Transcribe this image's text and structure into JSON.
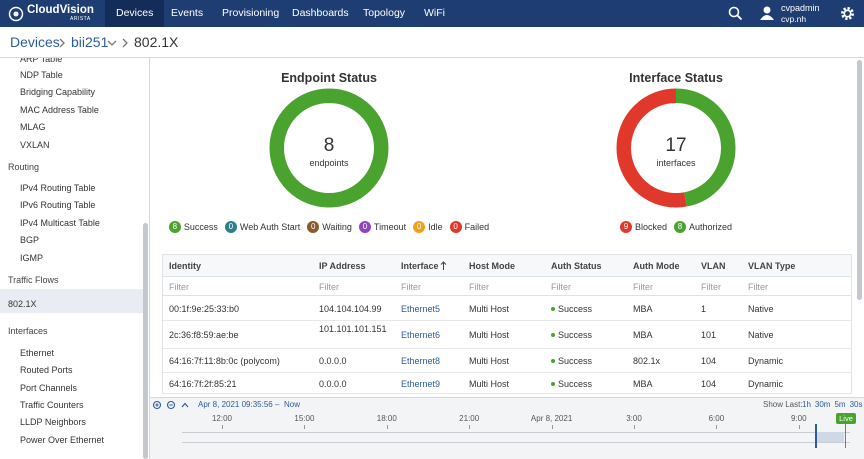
{
  "nav": {
    "brand": "CloudVision",
    "brand_sub": "ARISTA",
    "items": [
      "Devices",
      "Events",
      "Provisioning",
      "Dashboards",
      "Topology",
      "WiFi"
    ],
    "active": 0,
    "user": {
      "name": "cvpadmin",
      "host": "cvp.nh"
    }
  },
  "breadcrumb": [
    "Devices",
    "bii251",
    "802.1X"
  ],
  "sidebar": {
    "selected": 13,
    "items": [
      {
        "label": "ARP Table",
        "sub": true
      },
      {
        "label": "NDP Table",
        "sub": true
      },
      {
        "label": "Bridging Capability",
        "sub": true
      },
      {
        "label": "MAC Address Table",
        "sub": true
      },
      {
        "label": "MLAG",
        "sub": true
      },
      {
        "label": "VXLAN",
        "sub": true
      },
      {
        "label": "Routing",
        "sub": false
      },
      {
        "label": "IPv4 Routing Table",
        "sub": true
      },
      {
        "label": "IPv6 Routing Table",
        "sub": true
      },
      {
        "label": "IPv4 Multicast Table",
        "sub": true
      },
      {
        "label": "BGP",
        "sub": true
      },
      {
        "label": "IGMP",
        "sub": true
      },
      {
        "label": "Traffic Flows",
        "sub": false
      },
      {
        "label": "802.1X",
        "sub": false
      },
      {
        "label": "Interfaces",
        "sub": false
      },
      {
        "label": "Ethernet",
        "sub": true
      },
      {
        "label": "Routed Ports",
        "sub": true
      },
      {
        "label": "Port Channels",
        "sub": true
      },
      {
        "label": "Traffic Counters",
        "sub": true
      },
      {
        "label": "LLDP Neighbors",
        "sub": true
      },
      {
        "label": "Power Over Ethernet",
        "sub": true
      }
    ]
  },
  "endpoint_status": {
    "title": "Endpoint Status",
    "total": 8,
    "unit": "endpoints",
    "segments": [
      {
        "label": "Success",
        "count": 8,
        "color": "#4aa22f"
      },
      {
        "label": "Web Auth Start",
        "count": 0,
        "color": "#2d7f8a"
      },
      {
        "label": "Waiting",
        "count": 0,
        "color": "#8a5a2b"
      },
      {
        "label": "Timeout",
        "count": 0,
        "color": "#8e44c7"
      },
      {
        "label": "Idle",
        "count": 0,
        "color": "#f0a020"
      },
      {
        "label": "Failed",
        "count": 0,
        "color": "#e0392b"
      }
    ]
  },
  "interface_status": {
    "title": "Interface Status",
    "total": 17,
    "unit": "interfaces",
    "segments": [
      {
        "label": "Blocked",
        "count": 9,
        "color": "#e0392b"
      },
      {
        "label": "Authorized",
        "count": 8,
        "color": "#4aa22f"
      }
    ]
  },
  "table": {
    "columns": [
      "Identity",
      "IP Address",
      "Interface",
      "Host Mode",
      "Auth Status",
      "Auth Mode",
      "VLAN",
      "VLAN Type"
    ],
    "sort_column": 2,
    "filter_placeholder": "Filter",
    "rows": [
      [
        "00:1f:9e:25:33:b0",
        "104.104.104.99",
        "Ethernet5",
        "Multi Host",
        "Success",
        "MBA",
        "1",
        "Native"
      ],
      [
        "2c:36:f8:59:ae:be",
        "101.101.101.151",
        "Ethernet6",
        "Multi Host",
        "Success",
        "MBA",
        "101",
        "Native"
      ],
      [
        "64:16:7f:11:8b:0c (polycom)",
        "0.0.0.0",
        "Ethernet8",
        "Multi Host",
        "Success",
        "802.1x",
        "104",
        "Dynamic"
      ],
      [
        "64:16:7f:2f:85:21",
        "0.0.0.0",
        "Ethernet9",
        "Multi Host",
        "Success",
        "MBA",
        "104",
        "Dynamic"
      ]
    ]
  },
  "timeline": {
    "range_start": "Apr 8, 2021 09:35:56",
    "range_sep": "–",
    "range_end": "Now",
    "show_last_label": "Show Last:",
    "show_last": [
      "1h",
      "30m",
      "5m",
      "30s"
    ],
    "axis_labels": [
      "12:00",
      "15:00",
      "18:00",
      "21:00",
      "Apr 8, 2021",
      "3:00",
      "6:00",
      "9:00"
    ],
    "live": "Live"
  }
}
